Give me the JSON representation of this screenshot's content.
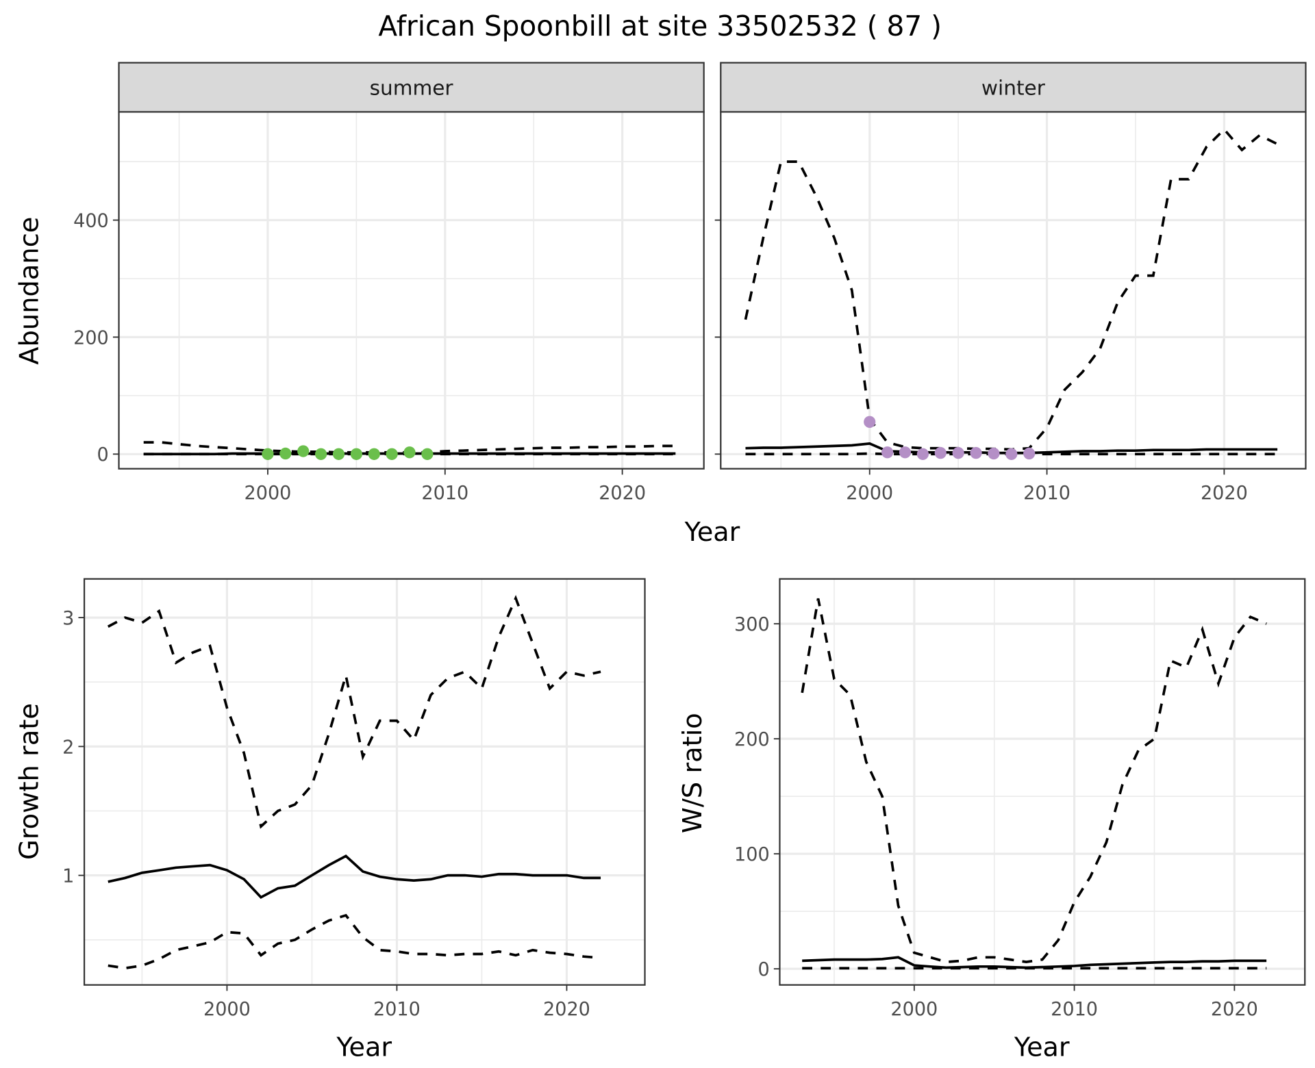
{
  "title": "African Spoonbill at site 33502532 ( 87 )",
  "colors": {
    "summer_points": "#6abf4b",
    "winter_points": "#b48fc6",
    "lines": "#000000",
    "grid": "#ebebeb",
    "strip_fill": "#d9d9d9"
  },
  "chart_data": [
    {
      "id": "abundance-summer",
      "type": "line",
      "facet": "summer",
      "xlabel": "Year",
      "ylabel": "Abundance",
      "xlim": [
        1991.6,
        2024.6
      ],
      "ylim": [
        -25,
        585
      ],
      "xticks": [
        2000,
        2010,
        2020
      ],
      "yticks": [
        0,
        200,
        400
      ],
      "grid": true,
      "years": [
        1993,
        1994,
        1995,
        1996,
        1997,
        1998,
        1999,
        2000,
        2001,
        2002,
        2003,
        2004,
        2005,
        2006,
        2007,
        2008,
        2009,
        2010,
        2011,
        2012,
        2013,
        2014,
        2015,
        2016,
        2017,
        2018,
        2019,
        2020,
        2021,
        2022,
        2023
      ],
      "series": [
        {
          "style": "dashed",
          "values": [
            20,
            20,
            17,
            14,
            12,
            10,
            8,
            6,
            5,
            4,
            4,
            3,
            3,
            3,
            3,
            3,
            3,
            5,
            6,
            7,
            8,
            9,
            10,
            11,
            11,
            12,
            12,
            13,
            13,
            14,
            14
          ]
        },
        {
          "style": "solid",
          "values": [
            0,
            0,
            0,
            0,
            0,
            1,
            1,
            1,
            1,
            1,
            1,
            1,
            1,
            1,
            1,
            1,
            1,
            1,
            1,
            1,
            1,
            1,
            1,
            1,
            1,
            1,
            1,
            1,
            1,
            1,
            1
          ]
        },
        {
          "style": "dashed",
          "values": [
            0,
            0,
            0,
            0,
            0,
            0,
            0,
            0,
            0,
            0,
            0,
            0,
            0,
            0,
            0,
            0,
            0,
            0,
            0,
            0,
            0,
            0,
            0,
            0,
            0,
            0,
            0,
            0,
            0,
            0,
            0
          ]
        }
      ],
      "points": {
        "years": [
          2000,
          2001,
          2002,
          2003,
          2004,
          2005,
          2006,
          2007,
          2008,
          2009
        ],
        "values": [
          0,
          1,
          5,
          0,
          0,
          0,
          0,
          0,
          3,
          0
        ]
      }
    },
    {
      "id": "abundance-winter",
      "type": "line",
      "facet": "winter",
      "xlabel": "Year",
      "ylabel": "Abundance",
      "xlim": [
        1991.6,
        2024.6
      ],
      "ylim": [
        -25,
        585
      ],
      "xticks": [
        2000,
        2010,
        2020
      ],
      "yticks": [
        0,
        200,
        400
      ],
      "grid": true,
      "years": [
        1993,
        1994,
        1995,
        1996,
        1997,
        1998,
        1999,
        2000,
        2001,
        2002,
        2003,
        2004,
        2005,
        2006,
        2007,
        2008,
        2009,
        2010,
        2011,
        2012,
        2013,
        2014,
        2015,
        2016,
        2017,
        2018,
        2019,
        2020,
        2021,
        2022,
        2023
      ],
      "series": [
        {
          "style": "dashed",
          "values": [
            230,
            370,
            500,
            500,
            440,
            370,
            280,
            60,
            20,
            12,
            10,
            10,
            10,
            9,
            9,
            8,
            10,
            45,
            110,
            140,
            180,
            260,
            305,
            305,
            470,
            470,
            525,
            555,
            520,
            545,
            530
          ]
        },
        {
          "style": "solid",
          "values": [
            10,
            11,
            11,
            12,
            13,
            14,
            15,
            18,
            5,
            4,
            3,
            3,
            3,
            3,
            2,
            2,
            2,
            3,
            4,
            5,
            5,
            6,
            6,
            7,
            7,
            7,
            8,
            8,
            8,
            8,
            8
          ]
        },
        {
          "style": "dashed",
          "values": [
            0,
            0,
            0,
            0,
            0,
            0,
            0,
            1,
            0,
            0,
            0,
            0,
            0,
            0,
            0,
            0,
            0,
            0,
            0,
            0,
            0,
            0,
            0,
            0,
            0,
            0,
            0,
            0,
            0,
            0,
            0
          ]
        }
      ],
      "points": {
        "years": [
          2000,
          2001,
          2002,
          2003,
          2004,
          2005,
          2006,
          2007,
          2008,
          2009
        ],
        "values": [
          55,
          3,
          3,
          0,
          2,
          2,
          2,
          1,
          0,
          1
        ]
      }
    },
    {
      "id": "growth-rate",
      "type": "line",
      "xlabel": "Year",
      "ylabel": "Growth rate",
      "xlim": [
        1991.6,
        2024.6
      ],
      "ylim": [
        0.15,
        3.3
      ],
      "xticks": [
        2000,
        2010,
        2020
      ],
      "yticks": [
        1,
        2,
        3
      ],
      "grid": true,
      "years": [
        1993,
        1994,
        1995,
        1996,
        1997,
        1998,
        1999,
        2000,
        2001,
        2002,
        2003,
        2004,
        2005,
        2006,
        2007,
        2008,
        2009,
        2010,
        2011,
        2012,
        2013,
        2014,
        2015,
        2016,
        2017,
        2018,
        2019,
        2020,
        2021,
        2022
      ],
      "series": [
        {
          "style": "dashed",
          "values": [
            2.93,
            3.0,
            2.96,
            3.05,
            2.65,
            2.73,
            2.78,
            2.3,
            1.95,
            1.38,
            1.5,
            1.55,
            1.7,
            2.1,
            2.55,
            1.92,
            2.2,
            2.2,
            2.05,
            2.4,
            2.53,
            2.58,
            2.45,
            2.85,
            3.15,
            2.8,
            2.45,
            2.58,
            2.55,
            2.58
          ]
        },
        {
          "style": "solid",
          "values": [
            0.95,
            0.98,
            1.02,
            1.04,
            1.06,
            1.07,
            1.08,
            1.04,
            0.97,
            0.83,
            0.9,
            0.92,
            1.0,
            1.08,
            1.15,
            1.03,
            0.99,
            0.97,
            0.96,
            0.97,
            1.0,
            1.0,
            0.99,
            1.01,
            1.01,
            1.0,
            1.0,
            1.0,
            0.98,
            0.98
          ]
        },
        {
          "style": "dashed",
          "values": [
            0.3,
            0.28,
            0.3,
            0.35,
            0.42,
            0.45,
            0.48,
            0.56,
            0.55,
            0.38,
            0.47,
            0.5,
            0.58,
            0.65,
            0.69,
            0.52,
            0.42,
            0.41,
            0.39,
            0.39,
            0.38,
            0.39,
            0.39,
            0.41,
            0.38,
            0.42,
            0.4,
            0.39,
            0.37,
            0.36
          ]
        }
      ]
    },
    {
      "id": "ws-ratio",
      "type": "line",
      "xlabel": "Year",
      "ylabel": "W/S ratio",
      "xlim": [
        1991.6,
        2024.4
      ],
      "ylim": [
        -14,
        339
      ],
      "xticks": [
        2000,
        2010,
        2020
      ],
      "yticks": [
        0,
        100,
        200,
        300
      ],
      "grid": true,
      "years": [
        1993,
        1994,
        1995,
        1996,
        1997,
        1998,
        1999,
        2000,
        2001,
        2002,
        2003,
        2004,
        2005,
        2006,
        2007,
        2008,
        2009,
        2010,
        2011,
        2012,
        2013,
        2014,
        2015,
        2016,
        2017,
        2018,
        2019,
        2020,
        2021,
        2022
      ],
      "series": [
        {
          "style": "dashed",
          "values": [
            240,
            322,
            252,
            238,
            180,
            150,
            55,
            14,
            10,
            6,
            7,
            10,
            10,
            8,
            6,
            8,
            25,
            58,
            80,
            110,
            160,
            190,
            200,
            268,
            262,
            295,
            248,
            288,
            306,
            300
          ]
        },
        {
          "style": "solid",
          "values": [
            7,
            7.5,
            8,
            8,
            8,
            8.5,
            10,
            3,
            2,
            1,
            1.5,
            2,
            2,
            1.5,
            1,
            1.5,
            2,
            2.5,
            3.5,
            4,
            4.5,
            5,
            5.5,
            6,
            6,
            6.5,
            6.5,
            7,
            7,
            7
          ]
        },
        {
          "style": "dashed",
          "values": [
            0.5,
            0.5,
            0.5,
            0.5,
            0.5,
            0.5,
            0.5,
            0.5,
            0.5,
            0.5,
            0.5,
            0.5,
            0.5,
            0.5,
            0.5,
            0.5,
            0.5,
            0.5,
            0.5,
            0.5,
            0.5,
            0.5,
            0.5,
            0.5,
            0.5,
            0.5,
            0.5,
            0.5,
            0.5,
            0.5
          ]
        }
      ]
    }
  ]
}
